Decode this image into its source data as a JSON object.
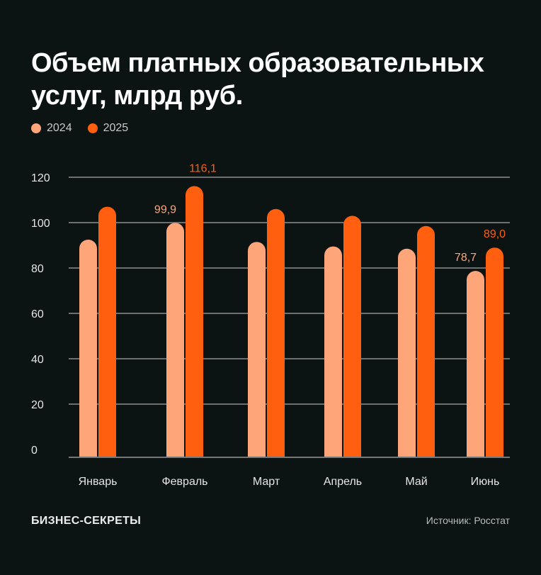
{
  "chart_data": {
    "type": "bar",
    "title": "Объем платных образовательных услуг, млрд руб.",
    "categories": [
      "Январь",
      "Февраль",
      "Март",
      "Апрель",
      "Май",
      "Июнь"
    ],
    "series": [
      {
        "name": "2024",
        "color": "#ffa57a",
        "values": [
          92.5,
          99.9,
          91.5,
          89.5,
          88.5,
          78.7
        ]
      },
      {
        "name": "2025",
        "color": "#ff5f0f",
        "values": [
          107.0,
          116.1,
          106.0,
          103.0,
          98.5,
          89.0
        ]
      }
    ],
    "data_labels": [
      {
        "category": "Февраль",
        "series": "2024",
        "text": "99,9"
      },
      {
        "category": "Февраль",
        "series": "2025",
        "text": "116,1"
      },
      {
        "category": "Июнь",
        "series": "2024",
        "text": "78,7"
      },
      {
        "category": "Июнь",
        "series": "2025",
        "text": "89,0"
      }
    ],
    "yticks": [
      "0",
      "20",
      "40",
      "60",
      "80",
      "100",
      "120"
    ],
    "ylim": [
      0,
      120
    ],
    "grid": true,
    "legend": "top-left",
    "xlabel": "",
    "ylabel": ""
  },
  "footer": {
    "brand": "БИЗНЕС-СЕКРЕТЫ",
    "source": "Источник: Росстат"
  }
}
